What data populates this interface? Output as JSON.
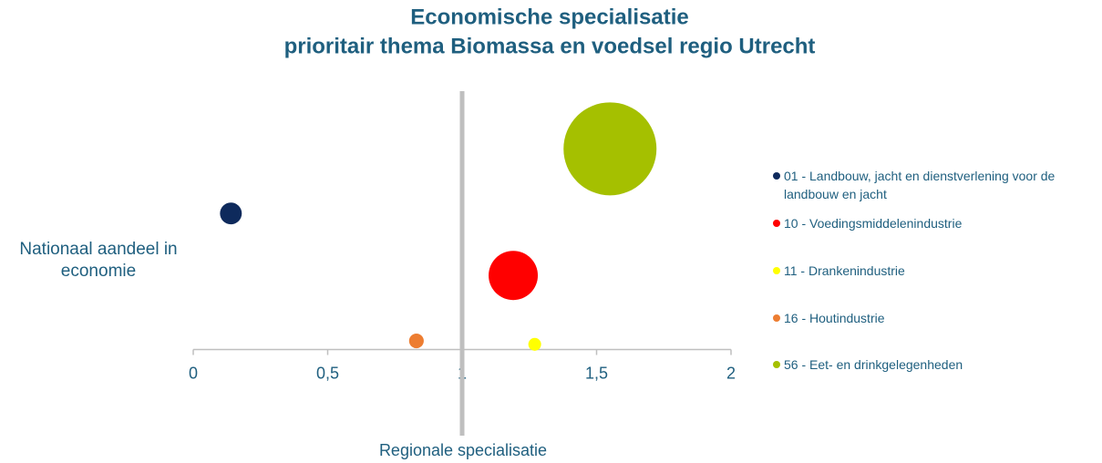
{
  "chart_data": {
    "type": "bubble",
    "title": "Economische specialisatie",
    "subtitle": "prioritair thema Biomassa en voedsel regio Utrecht",
    "x_label": "Regionale specialisatie",
    "y_label": "Nationaal aandeel in economie",
    "xlim": [
      0,
      2
    ],
    "xticks": [
      0,
      {
        "value": 0.5,
        "label": "0,5"
      },
      1,
      {
        "value": 1.5,
        "label": "1,5"
      },
      2
    ],
    "ylim": [
      -1,
      3
    ],
    "y_axis_crosses": 1,
    "legend": "right",
    "series": [
      {
        "name": "01 - Landbouw, jacht en dienstverlening voor de landbouw en jacht",
        "color": "#0e2a5c",
        "x": [
          0.14
        ],
        "values": [
          1.58
        ],
        "sizes": [
          5.5
        ]
      },
      {
        "name": "10 - Voedingsmiddelenindustrie",
        "color": "#ff0000",
        "x": [
          1.19
        ],
        "values": [
          0.86
        ],
        "sizes": [
          28
        ]
      },
      {
        "name": "11 - Drankenindustrie",
        "color": "#ffff00",
        "x": [
          1.27
        ],
        "values": [
          0.06
        ],
        "sizes": [
          1.9
        ]
      },
      {
        "name": "16 - Houtindustrie",
        "color": "#ed7d31",
        "x": [
          0.83
        ],
        "values": [
          0.1
        ],
        "sizes": [
          2.5
        ]
      },
      {
        "name": "56 - Eet- en drinkgelegenheden",
        "color": "#a5c000",
        "x": [
          1.55
        ],
        "values": [
          2.33
        ],
        "sizes": [
          100
        ]
      }
    ]
  }
}
